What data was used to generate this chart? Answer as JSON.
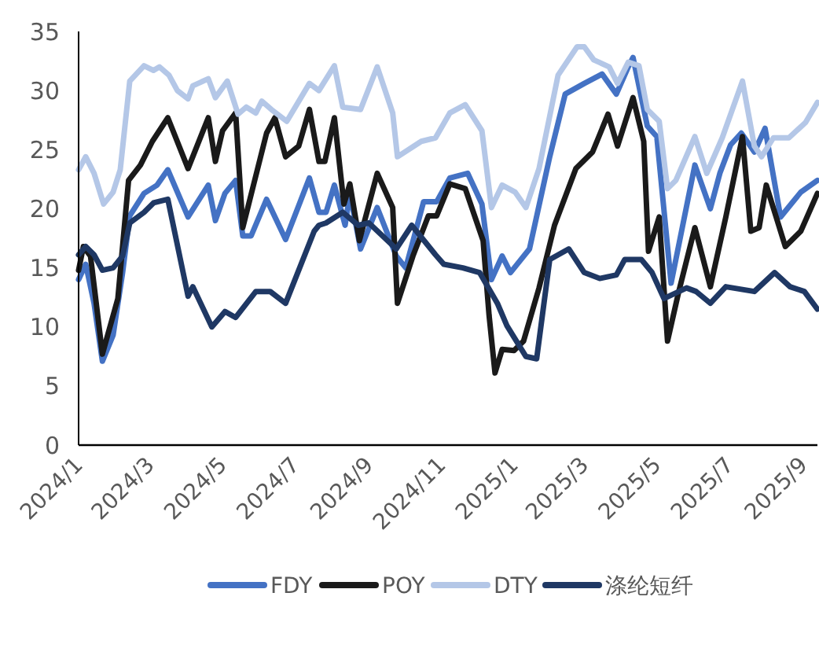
{
  "chart_data": {
    "type": "line",
    "legend": "bottom",
    "grid": false,
    "marker": "none",
    "line_style": "solid",
    "xlim": [
      "2024-01-01",
      "2025-09-13"
    ],
    "xticks": [
      {
        "value": "2024-01-01",
        "label": "2024/1"
      },
      {
        "value": "2024-03-01",
        "label": "2024/3"
      },
      {
        "value": "2024-05-01",
        "label": "2024/5"
      },
      {
        "value": "2024-07-01",
        "label": "2024/7"
      },
      {
        "value": "2024-09-01",
        "label": "2024/9"
      },
      {
        "value": "2024-11-01",
        "label": "2024/11"
      },
      {
        "value": "2025-01-01",
        "label": "2025/1"
      },
      {
        "value": "2025-03-01",
        "label": "2025/3"
      },
      {
        "value": "2025-05-01",
        "label": "2025/5"
      },
      {
        "value": "2025-07-01",
        "label": "2025/7"
      },
      {
        "value": "2025-09-01",
        "label": "2025/9"
      }
    ],
    "ylim": [
      0,
      35
    ],
    "yticks": [
      0,
      5,
      10,
      15,
      20,
      25,
      30,
      35
    ],
    "series": [
      {
        "name": "FDY",
        "color": "#4472c4",
        "x": [
          "2024-01-01",
          "2024-01-07",
          "2024-01-14",
          "2024-01-21",
          "2024-01-30",
          "2024-02-07",
          "2024-02-13",
          "2024-02-25",
          "2024-03-07",
          "2024-03-16",
          "2024-04-02",
          "2024-04-19",
          "2024-04-25",
          "2024-05-03",
          "2024-05-12",
          "2024-05-18",
          "2024-05-25",
          "2024-06-07",
          "2024-06-23",
          "2024-07-13",
          "2024-07-21",
          "2024-07-27",
          "2024-08-03",
          "2024-08-12",
          "2024-08-16",
          "2024-08-25",
          "2024-09-08",
          "2024-09-24",
          "2024-10-02",
          "2024-10-17",
          "2024-10-28",
          "2024-11-08",
          "2024-11-23",
          "2024-12-05",
          "2024-12-13",
          "2024-12-22",
          "2024-12-29",
          "2025-01-14",
          "2025-01-31",
          "2025-02-13",
          "2025-03-01",
          "2025-03-16",
          "2025-03-28",
          "2025-04-07",
          "2025-04-11",
          "2025-04-23",
          "2025-05-01",
          "2025-05-13",
          "2025-06-02",
          "2025-06-15",
          "2025-06-23",
          "2025-07-02",
          "2025-07-11",
          "2025-07-22",
          "2025-07-31",
          "2025-08-13",
          "2025-08-30",
          "2025-09-13"
        ],
        "values": [
          14,
          15.3,
          12,
          7.1,
          9.3,
          14.6,
          19.4,
          21.3,
          22,
          23.3,
          19.3,
          22,
          19,
          21.3,
          22.4,
          17.7,
          17.7,
          20.8,
          17.4,
          22.6,
          19.7,
          19.7,
          22,
          18.6,
          21.3,
          16.6,
          20.1,
          16,
          15,
          20.6,
          20.6,
          22.6,
          23,
          20.4,
          14,
          16,
          14.6,
          16.6,
          24.4,
          29.7,
          30.6,
          31.4,
          29.7,
          32,
          32.8,
          27,
          26.1,
          13.7,
          23.7,
          20,
          23,
          25.4,
          26.4,
          24.8,
          26.8,
          19.3,
          21.4,
          22.4
        ]
      },
      {
        "name": "POY",
        "color": "#1a1a1a",
        "x": [
          "2024-01-01",
          "2024-01-05",
          "2024-01-11",
          "2024-01-21",
          "2024-02-03",
          "2024-02-12",
          "2024-02-22",
          "2024-03-03",
          "2024-03-16",
          "2024-04-02",
          "2024-04-19",
          "2024-04-25",
          "2024-05-01",
          "2024-05-12",
          "2024-05-18",
          "2024-06-07",
          "2024-06-14",
          "2024-06-23",
          "2024-07-04",
          "2024-07-13",
          "2024-07-21",
          "2024-07-26",
          "2024-08-03",
          "2024-08-11",
          "2024-08-16",
          "2024-08-24",
          "2024-09-08",
          "2024-09-21",
          "2024-09-25",
          "2024-10-08",
          "2024-10-21",
          "2024-10-28",
          "2024-11-08",
          "2024-11-21",
          "2024-12-06",
          "2024-12-11",
          "2024-12-16",
          "2024-12-22",
          "2025-01-01",
          "2025-01-09",
          "2025-01-22",
          "2025-02-04",
          "2025-02-22",
          "2025-03-08",
          "2025-03-21",
          "2025-03-29",
          "2025-04-11",
          "2025-04-20",
          "2025-04-24",
          "2025-05-03",
          "2025-05-10",
          "2025-05-19",
          "2025-06-02",
          "2025-06-15",
          "2025-06-28",
          "2025-07-12",
          "2025-07-19",
          "2025-07-26",
          "2025-08-01",
          "2025-08-17",
          "2025-08-30",
          "2025-09-13"
        ],
        "values": [
          14.8,
          16.8,
          16,
          7.7,
          12.4,
          22.4,
          23.7,
          25.7,
          27.7,
          23.4,
          27.7,
          24,
          26.6,
          28.1,
          18.4,
          26.4,
          27.7,
          24.4,
          25.3,
          28.4,
          24,
          24,
          27.7,
          20.4,
          22.1,
          17.3,
          23,
          20.1,
          12,
          16,
          19.4,
          19.4,
          22.1,
          21.7,
          17.3,
          11,
          6.1,
          8.1,
          8,
          8.8,
          13.3,
          18.6,
          23.4,
          24.8,
          28,
          25.3,
          29.4,
          25.7,
          16.4,
          19.3,
          8.8,
          12.8,
          18.4,
          13.4,
          19.3,
          26.1,
          18.1,
          18.4,
          22,
          16.8,
          18.1,
          21.3
        ]
      },
      {
        "name": "DTY",
        "color": "#b4c7e7",
        "x": [
          "2024-01-01",
          "2024-01-07",
          "2024-01-14",
          "2024-01-22",
          "2024-01-30",
          "2024-02-05",
          "2024-02-13",
          "2024-02-25",
          "2024-03-04",
          "2024-03-09",
          "2024-03-17",
          "2024-03-24",
          "2024-04-02",
          "2024-04-06",
          "2024-04-19",
          "2024-04-25",
          "2024-05-05",
          "2024-05-14",
          "2024-05-21",
          "2024-05-29",
          "2024-06-03",
          "2024-06-11",
          "2024-06-24",
          "2024-07-13",
          "2024-07-21",
          "2024-08-03",
          "2024-08-10",
          "2024-08-25",
          "2024-09-08",
          "2024-09-21",
          "2024-09-25",
          "2024-10-15",
          "2024-10-27",
          "2024-11-08",
          "2024-11-21",
          "2024-12-05",
          "2024-12-13",
          "2024-12-22",
          "2025-01-02",
          "2025-01-11",
          "2025-01-22",
          "2025-02-07",
          "2025-02-23",
          "2025-03-01",
          "2025-03-09",
          "2025-03-22",
          "2025-03-29",
          "2025-04-07",
          "2025-04-16",
          "2025-04-23",
          "2025-05-03",
          "2025-05-10",
          "2025-05-17",
          "2025-06-02",
          "2025-06-12",
          "2025-06-25",
          "2025-07-12",
          "2025-07-22",
          "2025-07-28",
          "2025-08-07",
          "2025-08-20",
          "2025-09-03",
          "2025-09-13"
        ],
        "values": [
          23.3,
          24.4,
          23,
          20.4,
          21.4,
          23.3,
          30.8,
          32.1,
          31.7,
          32,
          31.3,
          30,
          29.3,
          30.4,
          31,
          29.4,
          30.8,
          28,
          28.6,
          28.1,
          29.1,
          28.4,
          27.4,
          30.6,
          30,
          32.1,
          28.6,
          28.4,
          32,
          28.1,
          24.4,
          25.7,
          26,
          28.1,
          28.8,
          26.6,
          20.1,
          22,
          21.4,
          20.1,
          23.4,
          31.3,
          33.7,
          33.7,
          32.6,
          32,
          30.6,
          32.4,
          32.1,
          28.4,
          27.4,
          21.7,
          22.4,
          26.1,
          23,
          26,
          30.8,
          25.3,
          24.4,
          26,
          26,
          27.3,
          29
        ]
      },
      {
        "name": "涤纶短纤",
        "color": "#1f3864",
        "x": [
          "2024-01-01",
          "2024-01-07",
          "2024-01-14",
          "2024-01-21",
          "2024-01-30",
          "2024-02-07",
          "2024-02-13",
          "2024-02-25",
          "2024-03-04",
          "2024-03-16",
          "2024-04-02",
          "2024-04-06",
          "2024-04-22",
          "2024-05-03",
          "2024-05-12",
          "2024-05-29",
          "2024-06-10",
          "2024-06-23",
          "2024-07-17",
          "2024-07-21",
          "2024-07-27",
          "2024-08-10",
          "2024-08-23",
          "2024-09-01",
          "2024-09-24",
          "2024-10-07",
          "2024-10-27",
          "2024-11-03",
          "2024-11-19",
          "2024-12-03",
          "2024-12-18",
          "2024-12-26",
          "2025-01-11",
          "2025-01-20",
          "2025-01-31",
          "2025-02-16",
          "2025-03-01",
          "2025-03-14",
          "2025-03-28",
          "2025-04-04",
          "2025-04-18",
          "2025-04-27",
          "2025-05-07",
          "2025-05-26",
          "2025-06-03",
          "2025-06-15",
          "2025-06-28",
          "2025-07-22",
          "2025-08-08",
          "2025-08-21",
          "2025-09-02",
          "2025-09-13"
        ],
        "values": [
          16.1,
          16.8,
          16.1,
          14.8,
          15,
          16,
          18.8,
          19.7,
          20.5,
          20.8,
          12.6,
          13.4,
          10,
          11.3,
          10.8,
          13,
          13,
          12,
          18.1,
          18.6,
          18.8,
          19.7,
          18.6,
          18.8,
          16.6,
          18.6,
          16.1,
          15.3,
          15,
          14.6,
          12,
          10.1,
          7.5,
          7.3,
          15.7,
          16.6,
          14.6,
          14.1,
          14.4,
          15.7,
          15.7,
          14.6,
          12.4,
          13.3,
          13,
          12,
          13.4,
          13,
          14.6,
          13.4,
          13,
          11.5
        ]
      }
    ]
  }
}
